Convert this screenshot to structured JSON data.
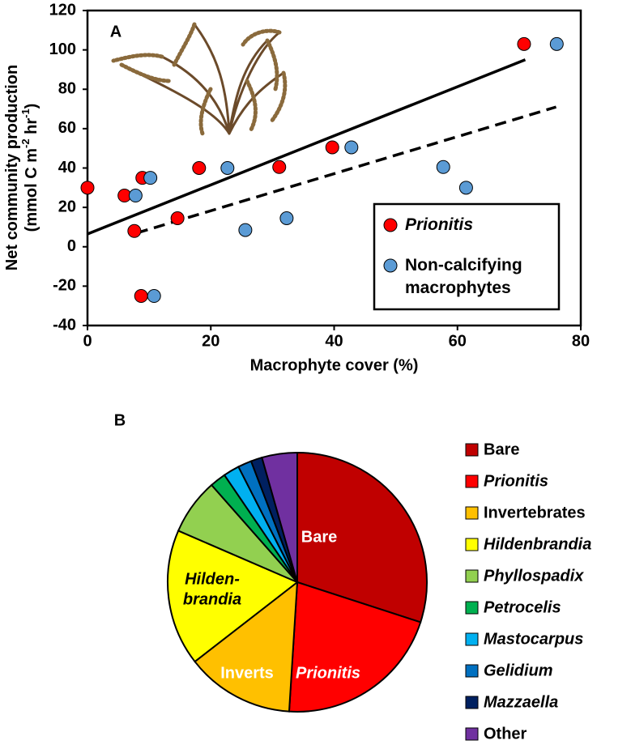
{
  "chart_data": [
    {
      "type": "scatter",
      "panel_label": "A",
      "x_label": "Macrophyte cover (%)",
      "y_label": [
        "Net community production",
        "(mmol C m",
        "-2",
        " hr",
        "-1",
        ")"
      ],
      "xlim": [
        0,
        80
      ],
      "xticks": [
        0,
        20,
        40,
        60,
        80
      ],
      "ylim": [
        -40,
        120
      ],
      "yticks": [
        -40,
        -20,
        0,
        20,
        40,
        60,
        80,
        100,
        120
      ],
      "grid": false,
      "legend": "lower right",
      "series": [
        {
          "name": "Prionitis",
          "color": "#ff0000",
          "x": [
            0,
            6,
            8.9,
            7.6,
            8.7,
            14.6,
            18.1,
            31.1,
            39.7,
            70.8
          ],
          "values": [
            30,
            26,
            35,
            8,
            -25,
            14.5,
            40,
            40.5,
            50.5,
            103
          ]
        },
        {
          "name": "Non-calcifying macrophytes",
          "color": "#5b9bd5",
          "x": [
            7.8,
            10.2,
            10.8,
            22.7,
            25.6,
            32.3,
            42.8,
            57.7,
            61.4,
            76.1
          ],
          "values": [
            26,
            35,
            -25,
            40,
            8.5,
            14.5,
            50.5,
            40.5,
            30,
            103
          ]
        }
      ],
      "trendlines": [
        {
          "style": "solid",
          "x": [
            0,
            71
          ],
          "values": [
            6.5,
            95
          ]
        },
        {
          "style": "dashed",
          "x": [
            8,
            76
          ],
          "values": [
            7,
            71
          ]
        }
      ]
    },
    {
      "type": "pie",
      "panel_label": "B",
      "categories": [
        "Bare",
        "Prionitis",
        "Invertebrates",
        "Hildenbrandia",
        "Phyllospadix",
        "Petrocelis",
        "Mastocarpus",
        "Gelidium",
        "Mazzaella",
        "Other"
      ],
      "italic": [
        false,
        true,
        false,
        true,
        true,
        true,
        true,
        true,
        true,
        false
      ],
      "values": [
        30,
        21,
        13.5,
        17,
        7,
        2,
        2,
        1.7,
        1.4,
        4.4
      ],
      "colors": [
        "#c00000",
        "#ff0000",
        "#ffc000",
        "#ffff00",
        "#92d050",
        "#00b050",
        "#00b0f0",
        "#0070c0",
        "#002060",
        "#7030a0"
      ],
      "slice_labels": [
        [
          "Bare"
        ],
        [
          "Prionitis"
        ],
        [
          "Inverts"
        ],
        [
          "Hilden-",
          "brandia"
        ],
        null,
        null,
        null,
        null,
        null,
        null
      ],
      "legend": "right"
    }
  ]
}
